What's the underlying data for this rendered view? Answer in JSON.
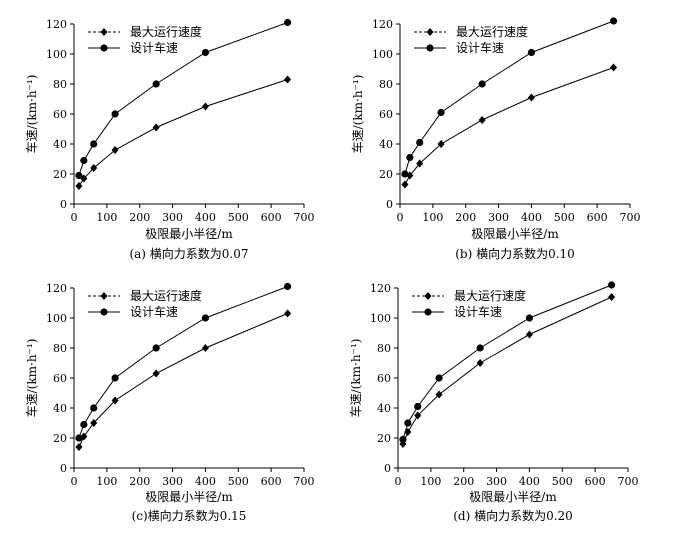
{
  "chart_data": [
    {
      "type": "line",
      "title": "(a) 横向力系数为0.07",
      "xlabel": "极限最小半径/m",
      "ylabel": "车速/(km·h⁻¹)",
      "xlim": [
        0,
        700
      ],
      "ylim": [
        0,
        120
      ],
      "xticks": [
        0,
        100,
        200,
        300,
        400,
        500,
        600,
        700
      ],
      "yticks": [
        0,
        20,
        40,
        60,
        80,
        100,
        120
      ],
      "legend_position": "top-left",
      "x": [
        15,
        30,
        60,
        125,
        250,
        400,
        650
      ],
      "series": [
        {
          "name": "最大运行速度",
          "marker": "diamond",
          "values": [
            12,
            17,
            24,
            36,
            51,
            65,
            83
          ]
        },
        {
          "name": "设计车速",
          "marker": "circle",
          "values": [
            19,
            29,
            40,
            60,
            80,
            101,
            121
          ]
        }
      ]
    },
    {
      "type": "line",
      "title": "(b) 横向力系数为0.10",
      "xlabel": "极限最小半径/m",
      "ylabel": "车速/(km·h⁻¹)",
      "xlim": [
        0,
        700
      ],
      "ylim": [
        0,
        120
      ],
      "xticks": [
        0,
        100,
        200,
        300,
        400,
        500,
        600,
        700
      ],
      "yticks": [
        0,
        20,
        40,
        60,
        80,
        100,
        120
      ],
      "legend_position": "top-left",
      "x": [
        15,
        30,
        60,
        125,
        250,
        400,
        650
      ],
      "series": [
        {
          "name": "最大运行速度",
          "marker": "diamond",
          "values": [
            13,
            19,
            27,
            40,
            56,
            71,
            91
          ]
        },
        {
          "name": "设计车速",
          "marker": "circle",
          "values": [
            20,
            31,
            41,
            61,
            80,
            101,
            122
          ]
        }
      ]
    },
    {
      "type": "line",
      "title": "(c)横向力系数为0.15",
      "xlabel": "极限最小半径/m",
      "ylabel": "车速/(km·h⁻¹)",
      "xlim": [
        0,
        700
      ],
      "ylim": [
        0,
        120
      ],
      "xticks": [
        0,
        100,
        200,
        300,
        400,
        500,
        600,
        700
      ],
      "yticks": [
        0,
        20,
        40,
        60,
        80,
        100,
        120
      ],
      "legend_position": "top-left",
      "x": [
        15,
        30,
        60,
        125,
        250,
        400,
        650
      ],
      "series": [
        {
          "name": "最大运行速度",
          "marker": "diamond",
          "values": [
            14,
            21,
            30,
            45,
            63,
            80,
            103
          ]
        },
        {
          "name": "设计车速",
          "marker": "circle",
          "values": [
            20,
            29,
            40,
            60,
            80,
            100,
            121
          ]
        }
      ]
    },
    {
      "type": "line",
      "title": "(d) 横向力系数为0.20",
      "xlabel": "极限最小半径/m",
      "ylabel": "车速/(km·h⁻¹)",
      "xlim": [
        0,
        700
      ],
      "ylim": [
        0,
        120
      ],
      "xticks": [
        0,
        100,
        200,
        300,
        400,
        500,
        600,
        700
      ],
      "yticks": [
        0,
        20,
        40,
        60,
        80,
        100,
        120
      ],
      "legend_position": "top-left",
      "x": [
        15,
        30,
        60,
        125,
        250,
        400,
        650
      ],
      "series": [
        {
          "name": "最大运行速度",
          "marker": "diamond",
          "values": [
            16,
            24,
            35,
            49,
            70,
            89,
            114
          ]
        },
        {
          "name": "设计车速",
          "marker": "circle",
          "values": [
            19,
            30,
            41,
            60,
            80,
            100,
            122
          ]
        }
      ]
    }
  ]
}
